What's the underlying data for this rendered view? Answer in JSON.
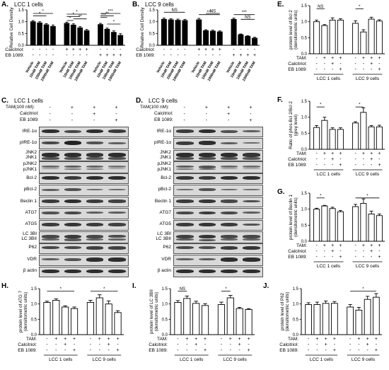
{
  "colors": {
    "bar_black": "#000000",
    "bar_white": "#ffffff",
    "blot_bg": "#d9d9d9",
    "band": "#222222"
  },
  "charts": {
    "A": {
      "type": "bar",
      "letter": "A.",
      "title": "LCC 1 cells",
      "ylabel": "Relative Cell Density",
      "ylim": [
        0,
        1.5
      ],
      "yticks": [
        "0.0",
        "0.5",
        "1.0",
        "1.5"
      ],
      "values": [
        1.0,
        0.95,
        0.87,
        0.8,
        0.93,
        0.86,
        0.74,
        0.62,
        0.88,
        0.68,
        0.55,
        0.42
      ],
      "errors": [
        0.05,
        0.05,
        0.05,
        0.06,
        0.05,
        0.05,
        0.05,
        0.05,
        0.05,
        0.05,
        0.06,
        0.07
      ],
      "fills": [
        "black",
        "black",
        "black",
        "black",
        "black",
        "black",
        "black",
        "black",
        "black",
        "black",
        "black",
        "black"
      ],
      "treat_labels": [
        "Calcitriol:",
        "EB 1089:"
      ],
      "treat_rows": [
        [
          "-",
          "-",
          "-",
          "-",
          "+",
          "+",
          "+",
          "+",
          "-",
          "-",
          "-",
          "-"
        ],
        [
          "-",
          "-",
          "-",
          "-",
          "-",
          "-",
          "-",
          "-",
          "+",
          "+",
          "+",
          "+"
        ]
      ],
      "xticklabels": [
        "Vehicle",
        "10nM TAM",
        "100nM TAM",
        "1000nM TAM",
        "Vehicle",
        "10nM TAM",
        "100nM TAM",
        "1000nM TAM",
        "Vehicle",
        "10nM TAM",
        "100nM TAM",
        "1000nM TAM"
      ],
      "sig": [
        "*",
        "*",
        "*",
        "*",
        "**",
        "*",
        "***",
        "**",
        "***",
        "*"
      ]
    },
    "B": {
      "type": "bar",
      "letter": "B.",
      "title": "LCC 9 cells",
      "ylabel": "Relative Cell Density",
      "ylim": [
        0,
        1.5
      ],
      "yticks": [
        "0.0",
        "0.5",
        "1.0",
        "1.5"
      ],
      "values": [
        1.1,
        1.08,
        1.06,
        1.05,
        1.08,
        0.62,
        0.6,
        0.57,
        1.1,
        0.45,
        0.38,
        0.3
      ],
      "errors": [
        0.05,
        0.05,
        0.05,
        0.05,
        0.06,
        0.04,
        0.04,
        0.04,
        0.05,
        0.03,
        0.03,
        0.04
      ],
      "fills": [
        "black",
        "black",
        "black",
        "black",
        "black",
        "black",
        "black",
        "black",
        "black",
        "black",
        "black",
        "black"
      ],
      "treat_labels": [
        "Calcitriol:",
        "EB 1089:"
      ],
      "treat_rows": [
        [
          "-",
          "-",
          "-",
          "-",
          "+",
          "+",
          "+",
          "+",
          "-",
          "-",
          "-",
          "-"
        ],
        [
          "-",
          "-",
          "-",
          "-",
          "-",
          "-",
          "-",
          "-",
          "+",
          "+",
          "+",
          "+"
        ]
      ],
      "xticklabels": [
        "Vehicle",
        "10nM TAM",
        "100nM TAM",
        "1000nM TAM",
        "Vehicle",
        "10nM TAM",
        "100nM TAM",
        "1000nM TAM",
        "Vehicle",
        "10nM TAM",
        "100nM TAM",
        "1000nM TAM"
      ],
      "sig": [
        "NS",
        "***",
        "NS",
        "***",
        "NS"
      ]
    },
    "E": {
      "type": "bar",
      "letter": "E.",
      "title": "",
      "ylabel": "protein level of Bcl 2 (densitometric units)",
      "ylim": [
        0,
        1.5
      ],
      "yticks": [
        "0.0",
        "0.5",
        "1.0",
        "1.5"
      ],
      "values": [
        1.0,
        0.88,
        1.05,
        1.05,
        0.95,
        0.68,
        1.08,
        1.02
      ],
      "errors": [
        0.05,
        0.03,
        0.07,
        0.04,
        0.08,
        0.07,
        0.06,
        0.04
      ],
      "fills": [
        "white",
        "white",
        "white",
        "white",
        "white",
        "white",
        "white",
        "white"
      ],
      "treat_labels": [
        "TAM:",
        "Calcitriol:",
        "EB 1089:"
      ],
      "treat_rows": [
        [
          "-",
          "+",
          "+",
          "+",
          "-",
          "+",
          "+",
          "+"
        ],
        [
          "-",
          "-",
          "+",
          "-",
          "-",
          "-",
          "+",
          "-"
        ],
        [
          "-",
          "-",
          "-",
          "+",
          "-",
          "-",
          "-",
          "+"
        ]
      ],
      "groups": [
        "LCC 1 cells",
        "LCC 9 cells"
      ],
      "sig": [
        "NS",
        "*"
      ]
    },
    "F": {
      "type": "bar",
      "letter": "F.",
      "title": "",
      "ylabel": "Ratio of phos-Bcl 2/Bcl 2 (grey level)",
      "ylim": [
        0,
        1.5
      ],
      "yticks": [
        "0.0",
        "0.5",
        "1.0",
        "1.5"
      ],
      "values": [
        0.68,
        0.9,
        0.62,
        0.62,
        0.82,
        1.15,
        0.7,
        0.7
      ],
      "errors": [
        0.06,
        0.1,
        0.05,
        0.05,
        0.04,
        0.14,
        0.04,
        0.05
      ],
      "fills": [
        "white",
        "white",
        "white",
        "white",
        "white",
        "white",
        "white",
        "white"
      ],
      "treat_labels": [
        "TAM:",
        "Calcitriol:",
        "EB 1089:"
      ],
      "treat_rows": [
        [
          "-",
          "+",
          "+",
          "+",
          "-",
          "+",
          "+",
          "+"
        ],
        [
          "-",
          "-",
          "+",
          "-",
          "-",
          "-",
          "+",
          "-"
        ],
        [
          "-",
          "-",
          "-",
          "+",
          "-",
          "-",
          "-",
          "+"
        ]
      ],
      "groups": [
        "LCC 1 cells",
        "LCC 9 cells"
      ],
      "sig": [
        "*",
        "*"
      ]
    },
    "G": {
      "type": "bar",
      "letter": "G.",
      "title": "",
      "ylabel": "protein level of Beclin 1 (densitometric units)",
      "ylim": [
        0,
        1.5
      ],
      "yticks": [
        "0.0",
        "0.5",
        "1.0",
        "1.5"
      ],
      "values": [
        1.0,
        1.1,
        1.02,
        0.92,
        1.08,
        1.18,
        0.85,
        0.8
      ],
      "errors": [
        0.03,
        0.02,
        0.04,
        0.04,
        0.07,
        0.14,
        0.09,
        0.05
      ],
      "fills": [
        "white",
        "white",
        "white",
        "white",
        "white",
        "white",
        "white",
        "white"
      ],
      "treat_labels": [
        "TAM:",
        "Calcitriol:",
        "EB 1089:"
      ],
      "treat_rows": [
        [
          "-",
          "+",
          "+",
          "+",
          "-",
          "+",
          "+",
          "+"
        ],
        [
          "-",
          "-",
          "+",
          "-",
          "-",
          "-",
          "+",
          "-"
        ],
        [
          "-",
          "-",
          "-",
          "+",
          "-",
          "-",
          "-",
          "+"
        ]
      ],
      "groups": [
        "LCC 1 cells",
        "LCC 9 cells"
      ],
      "sig": [
        "*",
        "*"
      ]
    },
    "H": {
      "type": "bar",
      "letter": "H.",
      "title": "",
      "ylabel": "protein level of ATG 7 (densitometric units)",
      "ylim": [
        0,
        1.5
      ],
      "yticks": [
        "0.0",
        "0.5",
        "1.0",
        "1.5"
      ],
      "values": [
        1.05,
        1.12,
        0.9,
        0.85,
        1.05,
        1.2,
        1.0,
        0.72
      ],
      "errors": [
        0.04,
        0.05,
        0.04,
        0.05,
        0.07,
        0.1,
        0.1,
        0.06
      ],
      "fills": [
        "white",
        "white",
        "white",
        "white",
        "white",
        "white",
        "white",
        "white"
      ],
      "treat_labels": [
        "TAM:",
        "Calcitriol:",
        "EB 1089:"
      ],
      "treat_rows": [
        [
          "-",
          "+",
          "+",
          "+",
          "-",
          "+",
          "+",
          "+"
        ],
        [
          "-",
          "-",
          "+",
          "-",
          "-",
          "-",
          "+",
          "-"
        ],
        [
          "-",
          "-",
          "-",
          "+",
          "-",
          "-",
          "-",
          "+"
        ]
      ],
      "groups": [
        "LCC 1 cells",
        "LCC 9 cells"
      ],
      "sig": [
        "*",
        "*"
      ]
    },
    "I": {
      "type": "bar",
      "letter": "I.",
      "title": "",
      "ylabel": "protein level of LC 3BII (densitometric units)",
      "ylim": [
        0,
        1.5
      ],
      "yticks": [
        "0.0",
        "0.5",
        "1.0",
        "1.5"
      ],
      "values": [
        1.05,
        1.18,
        1.02,
        0.95,
        0.98,
        1.2,
        0.85,
        0.82
      ],
      "errors": [
        0.06,
        0.08,
        0.07,
        0.06,
        0.08,
        0.08,
        0.04,
        0.03
      ],
      "fills": [
        "white",
        "white",
        "white",
        "white",
        "white",
        "white",
        "white",
        "white"
      ],
      "treat_labels": [
        "TAM:",
        "Calcitriol:",
        "EB 1089:"
      ],
      "treat_rows": [
        [
          "-",
          "+",
          "+",
          "+",
          "-",
          "+",
          "+",
          "+"
        ],
        [
          "-",
          "-",
          "+",
          "-",
          "-",
          "-",
          "+",
          "-"
        ],
        [
          "-",
          "-",
          "-",
          "+",
          "-",
          "-",
          "-",
          "+"
        ]
      ],
      "groups": [
        "LCC 1 cells",
        "LCC 9 cells"
      ],
      "sig": [
        "NS",
        "*"
      ]
    },
    "J": {
      "type": "bar",
      "letter": "J.",
      "title": "",
      "ylabel": "protein level of P62 (densitometric units)",
      "ylim": [
        0,
        1.5
      ],
      "yticks": [
        "0.0",
        "0.5",
        "1.0",
        "1.5"
      ],
      "values": [
        0.98,
        0.98,
        1.02,
        1.02,
        0.9,
        0.8,
        1.15,
        1.22
      ],
      "errors": [
        0.06,
        0.08,
        0.08,
        0.06,
        0.08,
        0.09,
        0.1,
        0.12
      ],
      "fills": [
        "white",
        "white",
        "white",
        "white",
        "white",
        "white",
        "white",
        "white"
      ],
      "treat_labels": [
        "TAM:",
        "Calcitriol:",
        "EB 1089:"
      ],
      "treat_rows": [
        [
          "-",
          "+",
          "+",
          "+",
          "-",
          "+",
          "+",
          "+"
        ],
        [
          "-",
          "-",
          "+",
          "-",
          "-",
          "-",
          "+",
          "-"
        ],
        [
          "-",
          "-",
          "-",
          "+",
          "-",
          "-",
          "-",
          "+"
        ]
      ],
      "groups": [
        "LCC 1 cells",
        "LCC 9 cells"
      ],
      "sig": [
        "*"
      ]
    }
  },
  "blots": {
    "C": {
      "letter": "C.",
      "cell_line": "LCC 1 cells",
      "treat_labels": [
        "TAM(100 nM):",
        "Calcitriol:",
        "EB 1089:"
      ],
      "treat_rows": [
        [
          "-",
          "+",
          "+",
          "+"
        ],
        [
          "-",
          "-",
          "+",
          "-"
        ],
        [
          "-",
          "-",
          "-",
          "+"
        ]
      ],
      "rows": [
        {
          "label": "IRE-1α",
          "bands": [
            0.9,
            0.7,
            0.9,
            0.8
          ]
        },
        {
          "label": "pIRE-1α",
          "bands": [
            0.7,
            1.0,
            0.6,
            0.5
          ]
        },
        {
          "label": "JNK2\nJNK1",
          "bands": [
            0.9,
            0.9,
            0.85,
            0.9
          ]
        },
        {
          "label": "pJNK2\npJNK1",
          "bands": [
            0.4,
            0.5,
            0.45,
            0.3
          ]
        },
        {
          "label": "Bcl-2",
          "bands": [
            0.9,
            0.8,
            0.9,
            0.9
          ]
        },
        {
          "label": "pBcl-2",
          "bands": [
            0.5,
            0.6,
            0.4,
            0.4
          ]
        },
        {
          "label": "Beclin 1",
          "bands": [
            0.8,
            0.9,
            0.8,
            0.75
          ]
        },
        {
          "label": "ATG7",
          "bands": [
            0.6,
            0.7,
            0.5,
            0.5
          ]
        },
        {
          "label": "ATG5",
          "bands": [
            0.8,
            0.85,
            0.8,
            0.75
          ]
        },
        {
          "label": "LC 3BI\nLC 3BII",
          "bands": [
            0.7,
            0.8,
            0.7,
            0.65
          ]
        },
        {
          "label": "P62",
          "bands": [
            0.7,
            0.7,
            0.75,
            0.75
          ]
        },
        {
          "label": "VDR",
          "bands": [
            0.5,
            0.6,
            0.9,
            0.9
          ]
        },
        {
          "label": "β actin",
          "bands": [
            0.9,
            0.9,
            0.9,
            0.9
          ]
        }
      ]
    },
    "D": {
      "letter": "D.",
      "cell_line": "LCC 9 cells",
      "treat_labels": [
        "TAM(100 nM):",
        "Calcitriol:",
        "EB 1089:"
      ],
      "treat_rows": [
        [
          "-",
          "+",
          "+",
          "+"
        ],
        [
          "-",
          "-",
          "+",
          "-"
        ],
        [
          "-",
          "-",
          "-",
          "+"
        ]
      ],
      "rows": [
        {
          "label": "IRE-1α",
          "bands": [
            0.8,
            0.9,
            0.6,
            0.5
          ]
        },
        {
          "label": "pIRE-1α",
          "bands": [
            0.8,
            0.9,
            0.5,
            0.4
          ]
        },
        {
          "label": "JNK2\nJNK1",
          "bands": [
            0.9,
            0.9,
            0.9,
            0.85
          ]
        },
        {
          "label": "pJNK2\npJNK1",
          "bands": [
            0.5,
            0.6,
            0.4,
            0.35
          ]
        },
        {
          "label": "Bcl-2",
          "bands": [
            0.85,
            0.8,
            0.9,
            0.9
          ]
        },
        {
          "label": "pBcl-2",
          "bands": [
            0.4,
            0.6,
            0.4,
            0.35
          ]
        },
        {
          "label": "Beclin 1",
          "bands": [
            0.8,
            0.85,
            0.7,
            0.65
          ]
        },
        {
          "label": "ATG7",
          "bands": [
            0.7,
            0.8,
            0.7,
            0.5
          ]
        },
        {
          "label": "ATG5",
          "bands": [
            0.8,
            0.85,
            0.8,
            0.6
          ]
        },
        {
          "label": "LC 3BI\nLC 3BII",
          "bands": [
            0.75,
            0.85,
            0.7,
            0.7
          ]
        },
        {
          "label": "P62",
          "bands": [
            0.7,
            0.65,
            0.8,
            0.85
          ]
        },
        {
          "label": "VDR",
          "bands": [
            0.5,
            0.55,
            0.9,
            0.9
          ]
        },
        {
          "label": "β actin",
          "bands": [
            0.9,
            0.9,
            0.9,
            0.9
          ]
        }
      ]
    }
  },
  "chart_data": [
    {
      "type": "bar",
      "panel": "A",
      "title": "LCC 1 cells",
      "ylabel": "Relative Cell Density",
      "ylim": [
        0,
        1.5
      ],
      "categories": [
        "Vehicle",
        "10nM TAM",
        "100nM TAM",
        "1000nM TAM",
        "Vehicle",
        "10nM TAM",
        "100nM TAM",
        "1000nM TAM",
        "Vehicle",
        "10nM TAM",
        "100nM TAM",
        "1000nM TAM"
      ],
      "values": [
        1.0,
        0.95,
        0.87,
        0.8,
        0.93,
        0.86,
        0.74,
        0.62,
        0.88,
        0.68,
        0.55,
        0.42
      ]
    },
    {
      "type": "bar",
      "panel": "B",
      "title": "LCC 9 cells",
      "ylabel": "Relative Cell Density",
      "ylim": [
        0,
        1.5
      ],
      "categories": [
        "Vehicle",
        "10nM TAM",
        "100nM TAM",
        "1000nM TAM",
        "Vehicle",
        "10nM TAM",
        "100nM TAM",
        "1000nM TAM",
        "Vehicle",
        "10nM TAM",
        "100nM TAM",
        "1000nM TAM"
      ],
      "values": [
        1.1,
        1.08,
        1.06,
        1.05,
        1.08,
        0.62,
        0.6,
        0.57,
        1.1,
        0.45,
        0.38,
        0.3
      ]
    },
    {
      "type": "bar",
      "panel": "E",
      "ylabel": "protein level of Bcl 2 (densitometric units)",
      "ylim": [
        0,
        1.5
      ],
      "values": [
        1.0,
        0.88,
        1.05,
        1.05,
        0.95,
        0.68,
        1.08,
        1.02
      ]
    },
    {
      "type": "bar",
      "panel": "F",
      "ylabel": "Ratio of phos-Bcl 2/Bcl 2 (grey level)",
      "ylim": [
        0,
        1.5
      ],
      "values": [
        0.68,
        0.9,
        0.62,
        0.62,
        0.82,
        1.15,
        0.7,
        0.7
      ]
    },
    {
      "type": "bar",
      "panel": "G",
      "ylabel": "protein level of Beclin 1 (densitometric units)",
      "ylim": [
        0,
        1.5
      ],
      "values": [
        1.0,
        1.1,
        1.02,
        0.92,
        1.08,
        1.18,
        0.85,
        0.8
      ]
    },
    {
      "type": "bar",
      "panel": "H",
      "ylabel": "protein level of ATG 7 (densitometric units)",
      "ylim": [
        0,
        1.5
      ],
      "values": [
        1.05,
        1.12,
        0.9,
        0.85,
        1.05,
        1.2,
        1.0,
        0.72
      ]
    },
    {
      "type": "bar",
      "panel": "I",
      "ylabel": "protein level of LC 3BII (densitometric units)",
      "ylim": [
        0,
        1.5
      ],
      "values": [
        1.05,
        1.18,
        1.02,
        0.95,
        0.98,
        1.2,
        0.85,
        0.82
      ]
    },
    {
      "type": "bar",
      "panel": "J",
      "ylabel": "protein level of P62 (densitometric units)",
      "ylim": [
        0,
        1.5
      ],
      "values": [
        0.98,
        0.98,
        1.02,
        1.02,
        0.9,
        0.8,
        1.15,
        1.22
      ]
    }
  ]
}
